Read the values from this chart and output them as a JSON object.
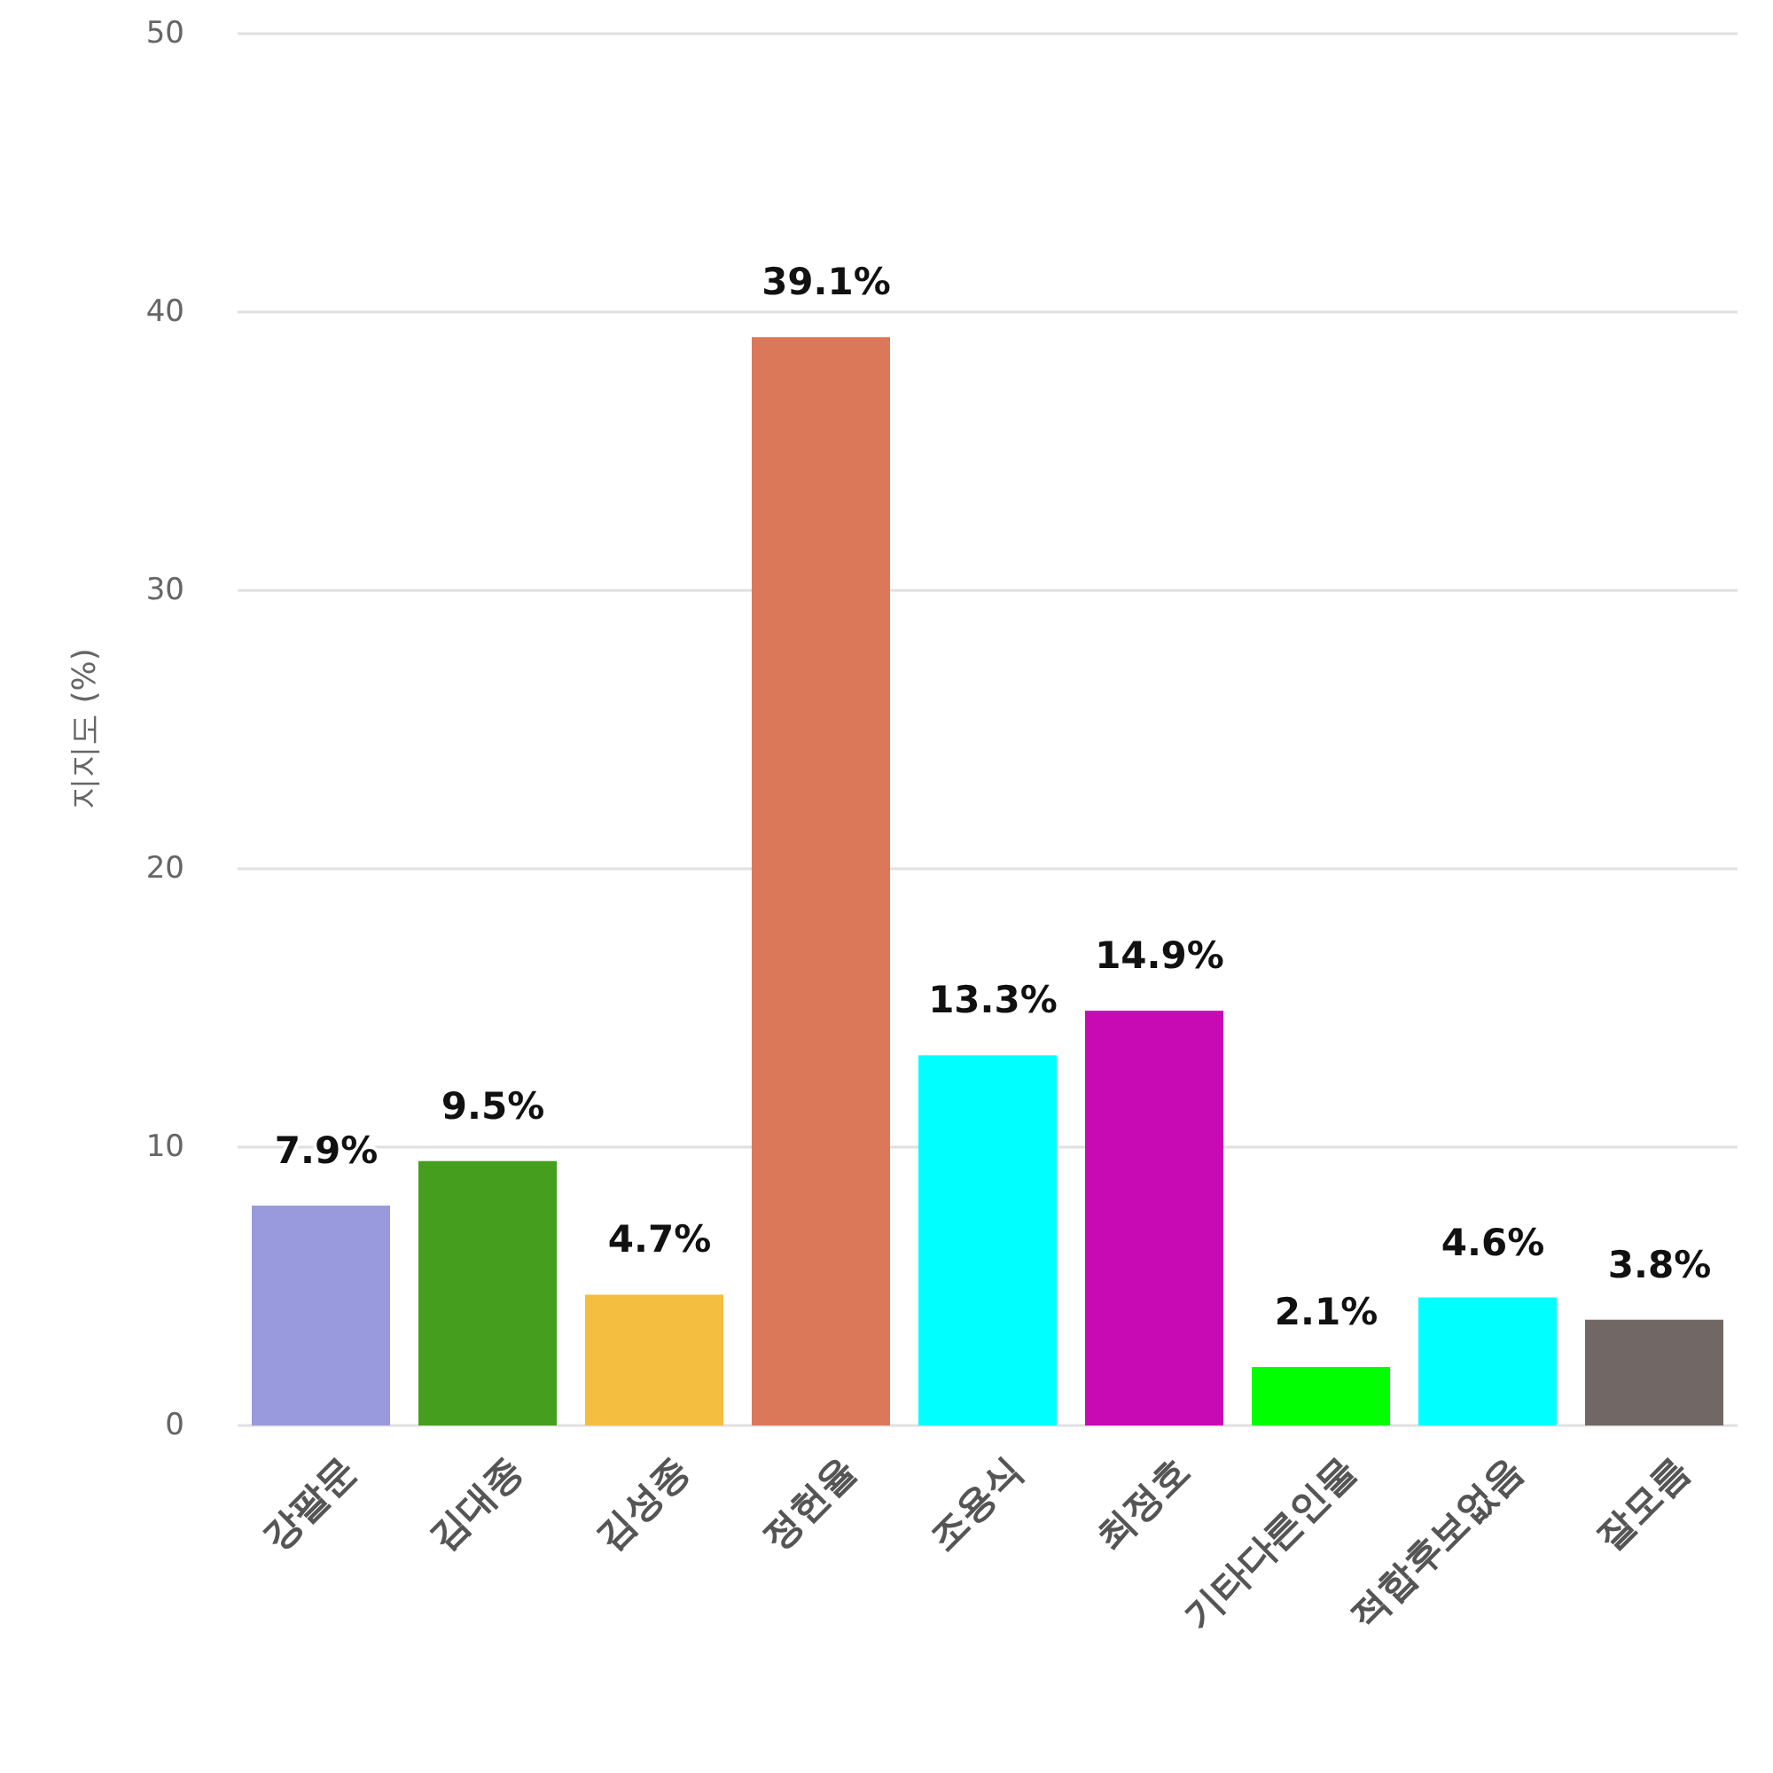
{
  "chart_data": {
    "type": "bar",
    "ylabel": "지지도 (%)",
    "categories": [
      "강팔문",
      "김대종",
      "김성종",
      "정헌율",
      "조용식",
      "최정호",
      "기타다른인물",
      "적합후보없음",
      "잘모름"
    ],
    "values": [
      7.9,
      9.5,
      4.7,
      39.1,
      13.3,
      14.9,
      2.1,
      4.6,
      3.8
    ],
    "colors": [
      "#9999dd",
      "#459e1e",
      "#f4be40",
      "#dc785a",
      "#00ffff",
      "#c80ab4",
      "#00ff00",
      "#00ffff",
      "#716866"
    ],
    "value_labels": [
      "7.9%",
      "9.5%",
      "4.7%",
      "39.1%",
      "13.3%",
      "14.9%",
      "2.1%",
      "4.6%",
      "3.8%"
    ],
    "ylim": [
      0,
      50
    ],
    "yticks": [
      0,
      10,
      20,
      30,
      40,
      50
    ],
    "grid": "y"
  }
}
